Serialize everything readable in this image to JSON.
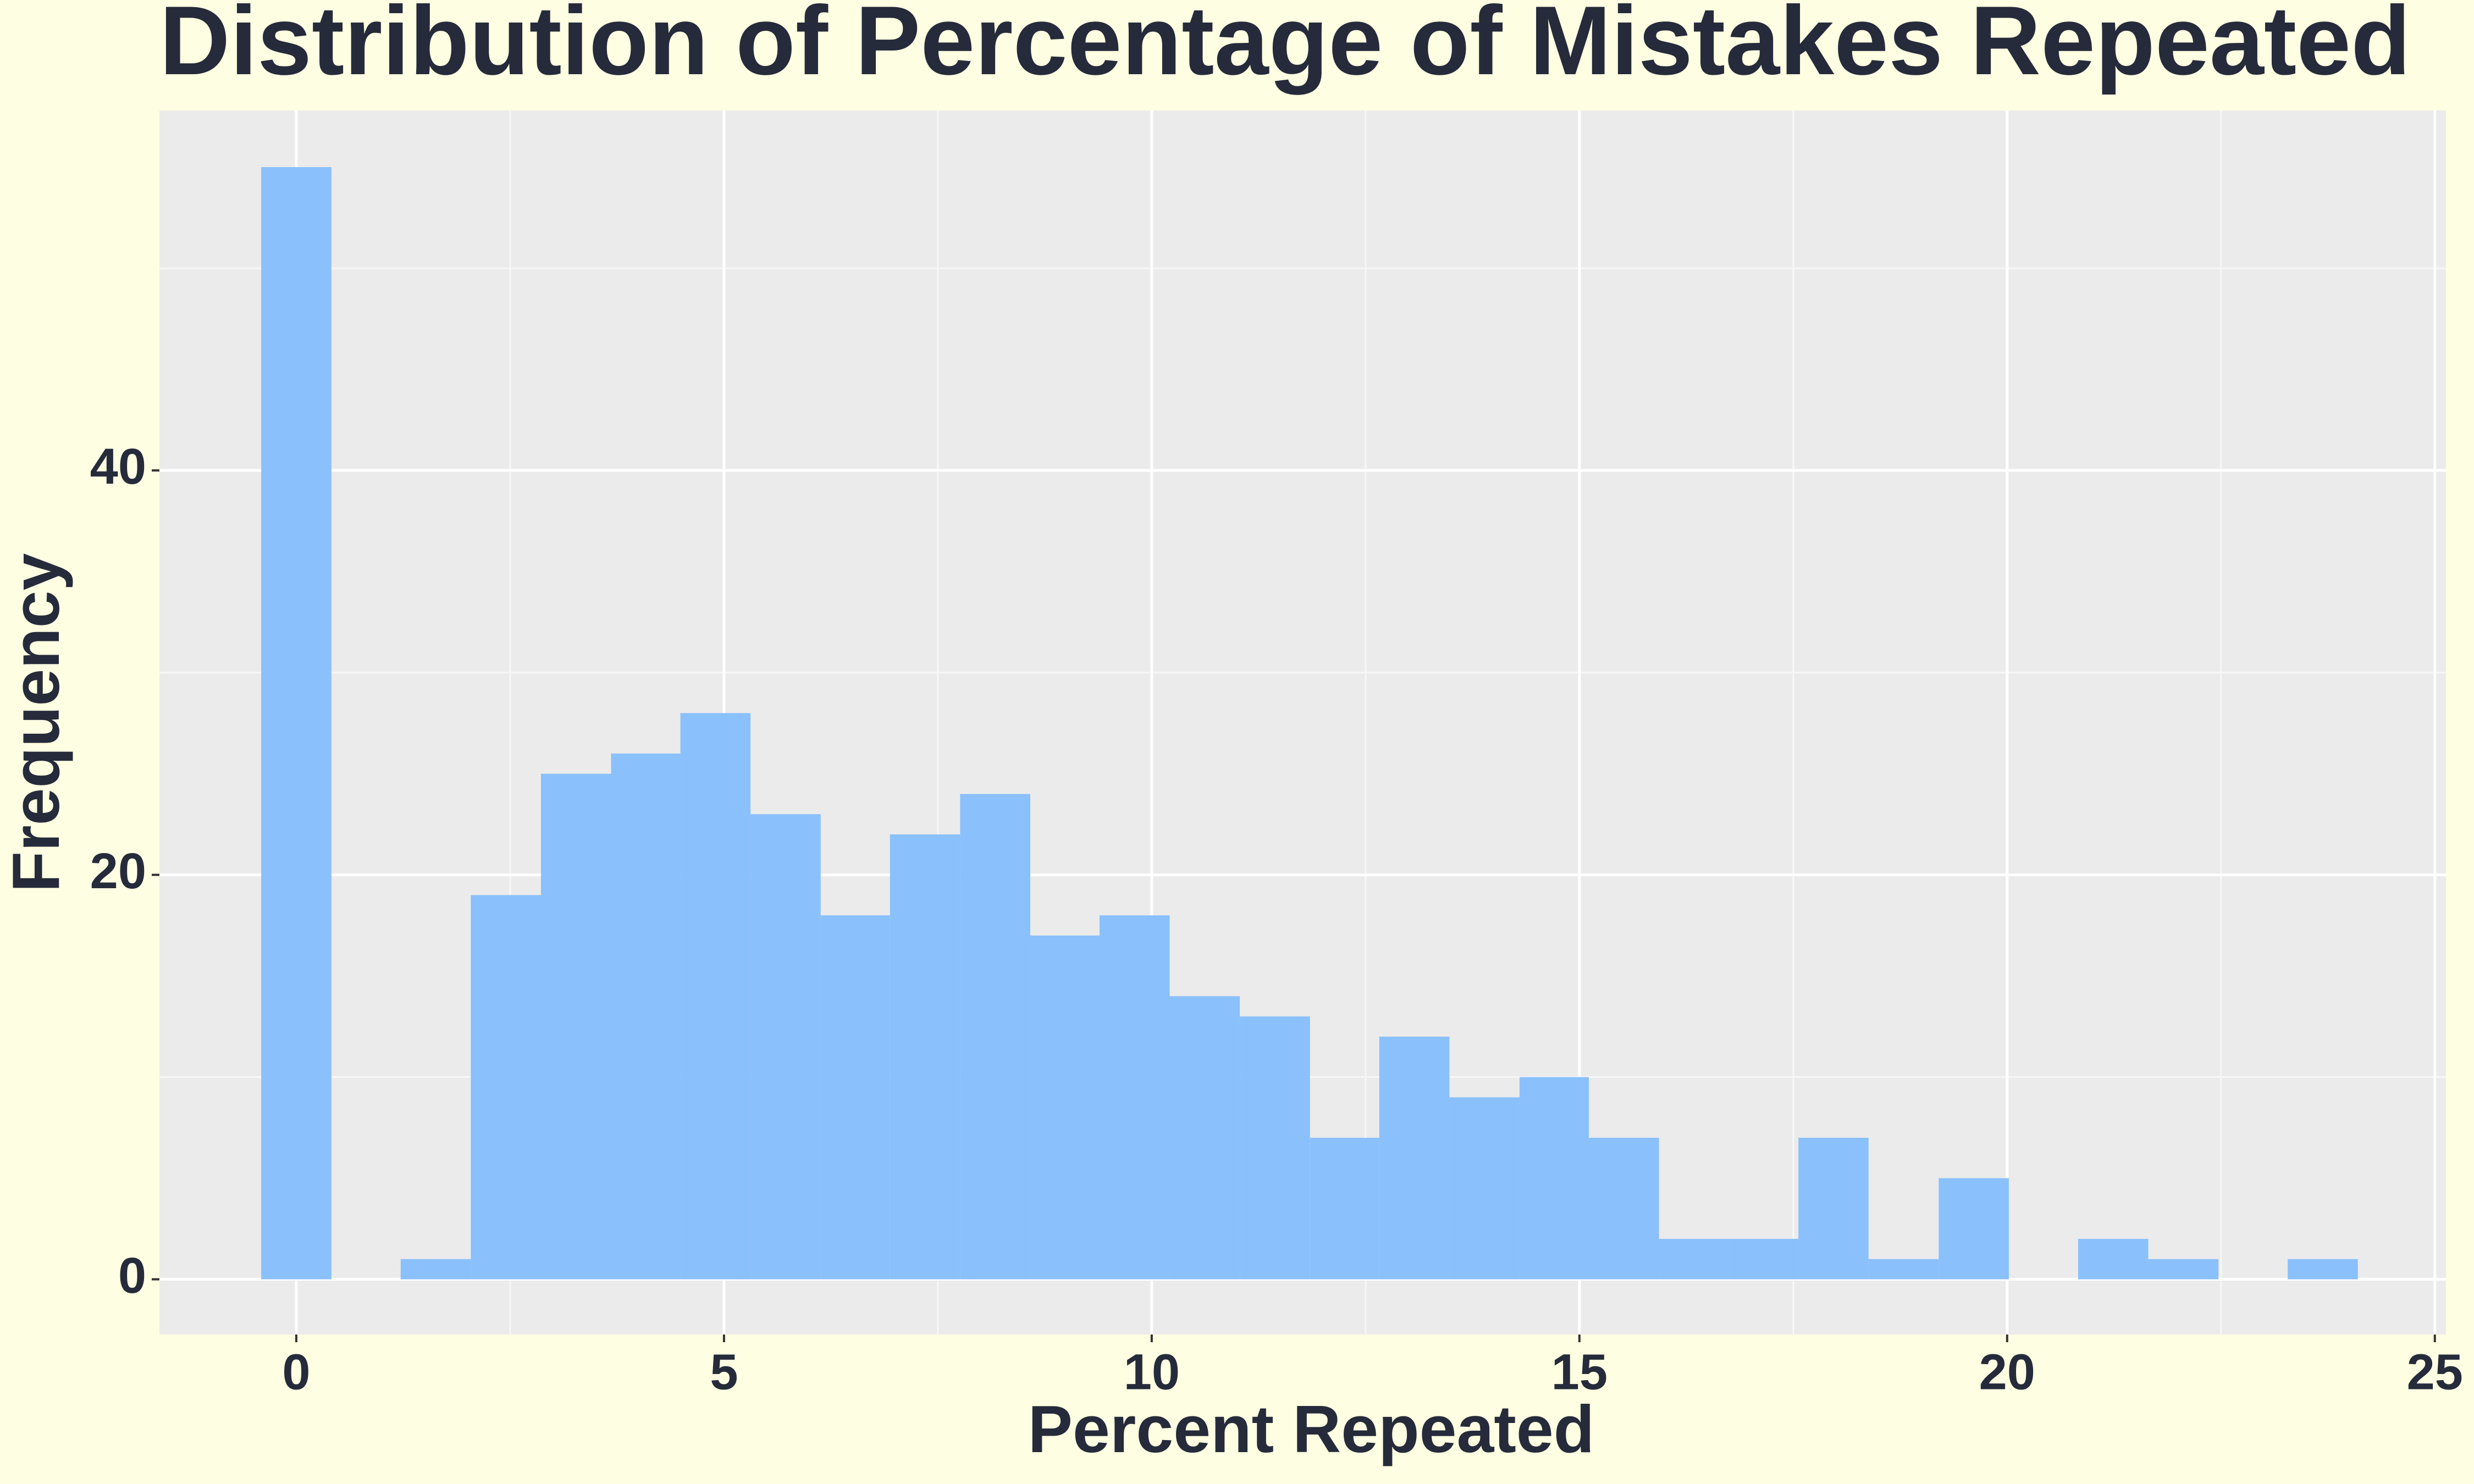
{
  "chart_data": {
    "type": "histogram",
    "title": "Distribution of Percentage of Mistakes Repeated",
    "x_label": "Percent Repeated",
    "y_label": "Frequency",
    "bins": [
      -0.41,
      0.41,
      1.22,
      2.04,
      2.86,
      3.68,
      4.49,
      5.31,
      6.13,
      6.94,
      7.76,
      8.58,
      9.39,
      10.21,
      11.03,
      11.85,
      12.66,
      13.48,
      14.3,
      15.11,
      15.93,
      16.75,
      17.56,
      18.38,
      19.2,
      20.02,
      20.83,
      21.65,
      22.47,
      23.28,
      24.1
    ],
    "values": [
      55,
      0,
      1,
      19,
      25,
      26,
      28,
      23,
      18,
      22,
      24,
      17,
      18,
      14,
      13,
      7,
      12,
      9,
      10,
      7,
      2,
      2,
      7,
      1,
      5,
      0,
      2,
      1,
      0,
      1
    ],
    "color": "#8ac0fc",
    "xlim": [
      -1.6,
      25.13
    ],
    "ylim": [
      -2.73,
      57.8
    ],
    "xticks": [
      0,
      5,
      10,
      15,
      20,
      25
    ],
    "yticks": [
      0,
      20,
      40
    ],
    "xminor": [
      2.5,
      7.5,
      12.5,
      17.5,
      22.5
    ],
    "yminor": [
      10,
      30,
      50
    ],
    "grid": true
  }
}
